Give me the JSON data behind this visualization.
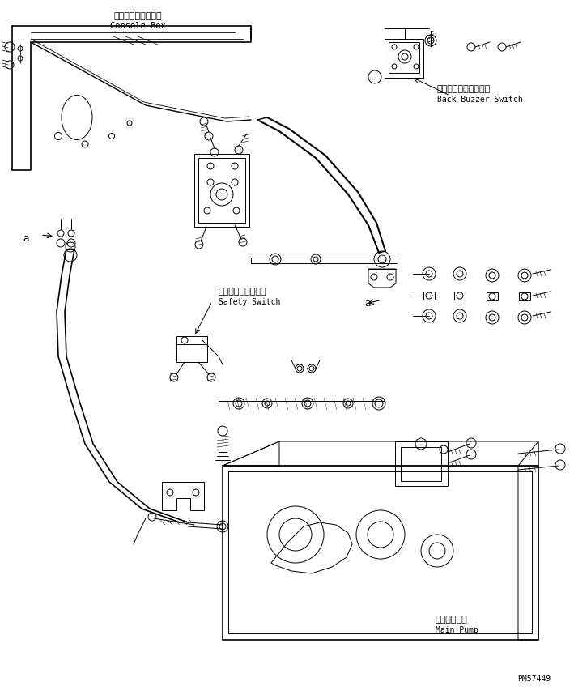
{
  "bg_color": "#ffffff",
  "line_color": "#000000",
  "fig_width": 7.09,
  "fig_height": 8.63,
  "dpi": 100,
  "labels": {
    "console_box_ja": "コンソールボックス",
    "console_box_en": "Console Box",
    "back_buzzer_ja": "バックブザースイッチ",
    "back_buzzer_en": "Back Buzzer Switch",
    "safety_switch_ja": "セーフティスイッチ",
    "safety_switch_en": "Safety Switch",
    "main_pump_ja": "メインポンプ",
    "main_pump_en": "Main Pump",
    "part_number": "PM57449",
    "label_a1": "a",
    "label_a2": "a"
  }
}
